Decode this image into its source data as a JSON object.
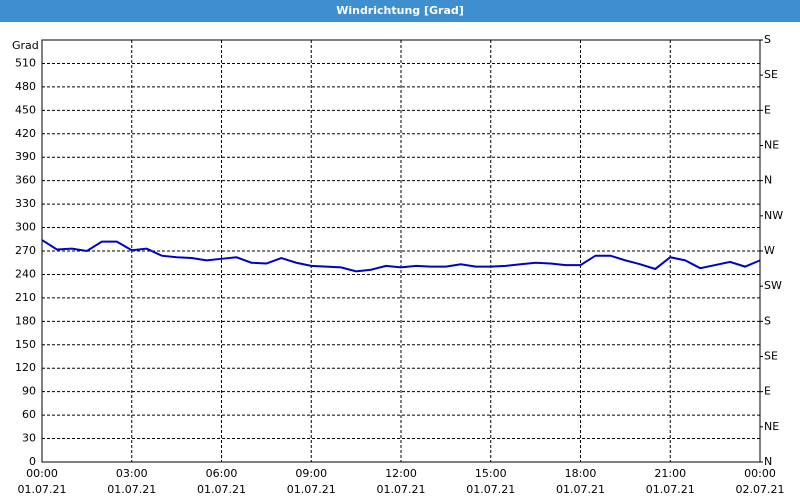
{
  "chart_data": {
    "type": "line",
    "title": "Windrichtung [Grad]",
    "y_label": "Grad",
    "x": [
      0,
      0.5,
      1,
      1.5,
      2,
      2.5,
      3,
      3.5,
      4,
      4.5,
      5,
      5.5,
      6,
      6.5,
      7,
      7.5,
      8,
      8.5,
      9,
      9.5,
      10,
      10.5,
      11,
      11.5,
      12,
      12.5,
      13,
      13.5,
      14,
      14.5,
      15,
      15.5,
      16,
      16.5,
      17,
      17.5,
      18,
      18.5,
      19,
      19.5,
      20,
      20.5,
      21,
      21.5,
      22,
      22.5,
      23,
      23.5,
      24
    ],
    "series": [
      {
        "name": "Windrichtung",
        "color": "#0000c8",
        "values": [
          284,
          272,
          273,
          270,
          282,
          282,
          271,
          273,
          264,
          262,
          261,
          258,
          260,
          262,
          255,
          254,
          261,
          255,
          251,
          250,
          249,
          244,
          246,
          251,
          249,
          251,
          250,
          250,
          253,
          250,
          250,
          251,
          253,
          255,
          254,
          252,
          252,
          264,
          264,
          258,
          253,
          247,
          262,
          258,
          248,
          252,
          256,
          250,
          258
        ]
      }
    ],
    "xlim": [
      0,
      24
    ],
    "xticks": [
      {
        "value": 0,
        "label": "00:00",
        "date": "01.07.21"
      },
      {
        "value": 3,
        "label": "03:00",
        "date": "01.07.21"
      },
      {
        "value": 6,
        "label": "06:00",
        "date": "01.07.21"
      },
      {
        "value": 9,
        "label": "09:00",
        "date": "01.07.21"
      },
      {
        "value": 12,
        "label": "12:00",
        "date": "01.07.21"
      },
      {
        "value": 15,
        "label": "15:00",
        "date": "01.07.21"
      },
      {
        "value": 18,
        "label": "18:00",
        "date": "01.07.21"
      },
      {
        "value": 21,
        "label": "21:00",
        "date": "01.07.21"
      },
      {
        "value": 24,
        "label": "00:00",
        "date": "02.07.21"
      }
    ],
    "ylim": [
      0,
      540
    ],
    "yticks": [
      0,
      30,
      60,
      90,
      120,
      150,
      180,
      210,
      240,
      270,
      300,
      330,
      360,
      390,
      420,
      450,
      480,
      510
    ],
    "y2lim": [
      0,
      540
    ],
    "y2ticks": [
      {
        "value": 540,
        "label": "S"
      },
      {
        "value": 495,
        "label": "SE"
      },
      {
        "value": 450,
        "label": "E"
      },
      {
        "value": 405,
        "label": "NE"
      },
      {
        "value": 360,
        "label": "N"
      },
      {
        "value": 315,
        "label": "NW"
      },
      {
        "value": 270,
        "label": "W"
      },
      {
        "value": 225,
        "label": "SW"
      },
      {
        "value": 180,
        "label": "S"
      },
      {
        "value": 135,
        "label": "SE"
      },
      {
        "value": 90,
        "label": "E"
      },
      {
        "value": 45,
        "label": "NE"
      },
      {
        "value": 0,
        "label": "N"
      }
    ],
    "grid": true
  }
}
